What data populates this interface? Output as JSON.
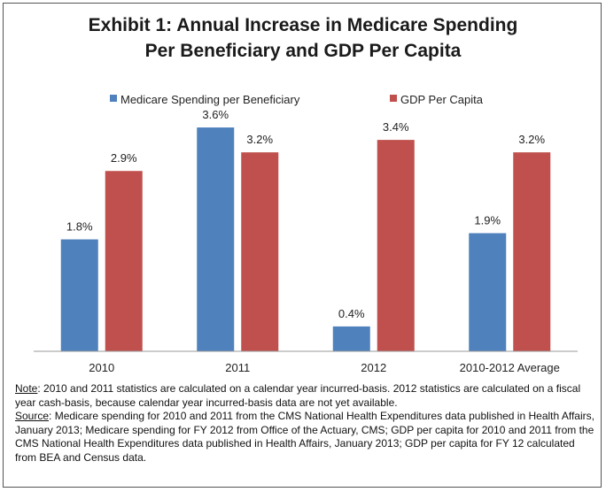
{
  "chart_data": {
    "type": "bar",
    "title_lines": [
      "Exhibit 1: Annual Increase in Medicare Spending",
      "Per Beneficiary and GDP Per Capita"
    ],
    "categories": [
      "2010",
      "2011",
      "2012",
      "2010-2012 Average"
    ],
    "series": [
      {
        "name": "Medicare Spending per Beneficiary",
        "values": [
          1.8,
          3.6,
          0.4,
          1.9
        ],
        "labels": [
          "1.8%",
          "3.6%",
          "0.4%",
          "1.9%"
        ],
        "color": "#4F81BD"
      },
      {
        "name": "GDP Per Capita",
        "values": [
          2.9,
          3.2,
          3.4,
          3.2
        ],
        "labels": [
          "2.9%",
          "3.2%",
          "3.4%",
          "3.2%"
        ],
        "color": "#C0504D"
      }
    ],
    "ylim": [
      0,
      3.8
    ],
    "grid": false,
    "legend_position": "top"
  },
  "notes": {
    "note_label": "Note",
    "note_text": ": 2010 and 2011 statistics are calculated on a calendar year incurred-basis. 2012 statistics are calculated on a fiscal year cash-basis, because calendar year incurred-basis data are not yet available.",
    "source_label": "Source",
    "source_text": ": Medicare spending for 2010 and 2011 from the CMS National Health Expenditures data published in Health Affairs, January 2013; Medicare spending for FY 2012 from Office of the Actuary, CMS; GDP per capita for 2010 and 2011 from the CMS National Health Expenditures data published in Health Affairs, January 2013; GDP per capita for FY 12 calculated from BEA and Census data."
  }
}
